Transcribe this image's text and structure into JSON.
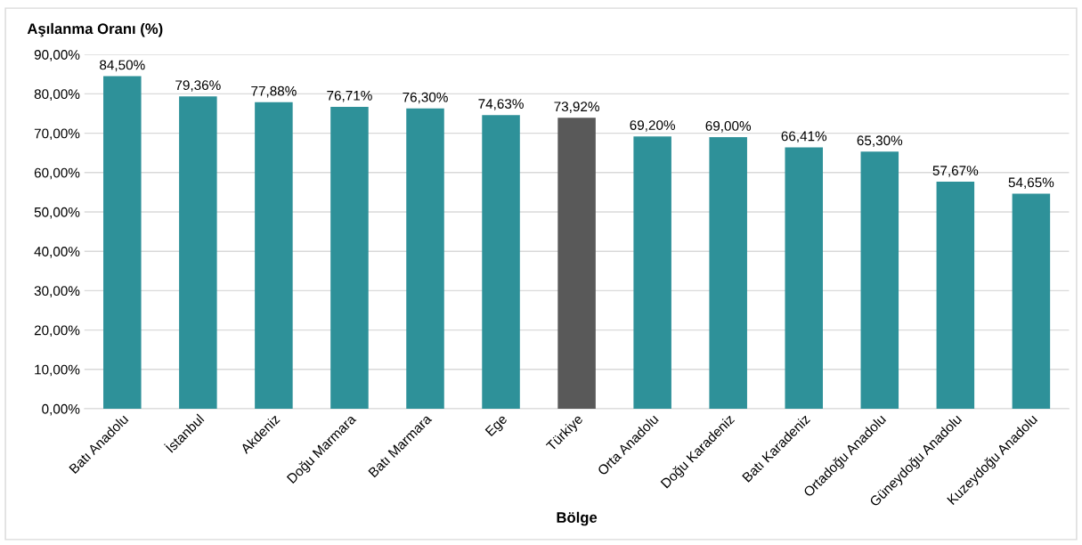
{
  "chart_data": {
    "type": "bar",
    "ylabel": "Aşılanma Oranı (%)",
    "xlabel": "Bölge",
    "categories": [
      "Batı Anadolu",
      "İstanbul",
      "Akdeniz",
      "Doğu Marmara",
      "Batı Marmara",
      "Ege",
      "Türkiye",
      "Orta Anadolu",
      "Doğu Karadeniz",
      "Batı Karadeniz",
      "Ortadoğu Anadolu",
      "Güneydoğu Anadolu",
      "Kuzeydoğu Anadolu"
    ],
    "values": [
      84.5,
      79.36,
      77.88,
      76.71,
      76.3,
      74.63,
      73.92,
      69.2,
      69.0,
      66.41,
      65.3,
      57.67,
      54.65
    ],
    "value_labels": [
      "84,50%",
      "79,36%",
      "77,88%",
      "76,71%",
      "76,30%",
      "74,63%",
      "73,92%",
      "69,20%",
      "69,00%",
      "66,41%",
      "65,30%",
      "57,67%",
      "54,65%"
    ],
    "colors": [
      "#2e9199",
      "#2e9199",
      "#2e9199",
      "#2e9199",
      "#2e9199",
      "#2e9199",
      "#595959",
      "#2e9199",
      "#2e9199",
      "#2e9199",
      "#2e9199",
      "#2e9199",
      "#2e9199"
    ],
    "ylim": [
      0,
      90
    ],
    "yticks": [
      {
        "value": 0,
        "label": "0,00%"
      },
      {
        "value": 10,
        "label": "10,00%"
      },
      {
        "value": 20,
        "label": "20,00%"
      },
      {
        "value": 30,
        "label": "30,00%"
      },
      {
        "value": 40,
        "label": "40,00%"
      },
      {
        "value": 50,
        "label": "50,00%"
      },
      {
        "value": 60,
        "label": "60,00%"
      },
      {
        "value": 70,
        "label": "70,00%"
      },
      {
        "value": 80,
        "label": "80,00%"
      },
      {
        "value": 90,
        "label": "90,00%"
      }
    ],
    "grid": "y",
    "legend": false
  }
}
